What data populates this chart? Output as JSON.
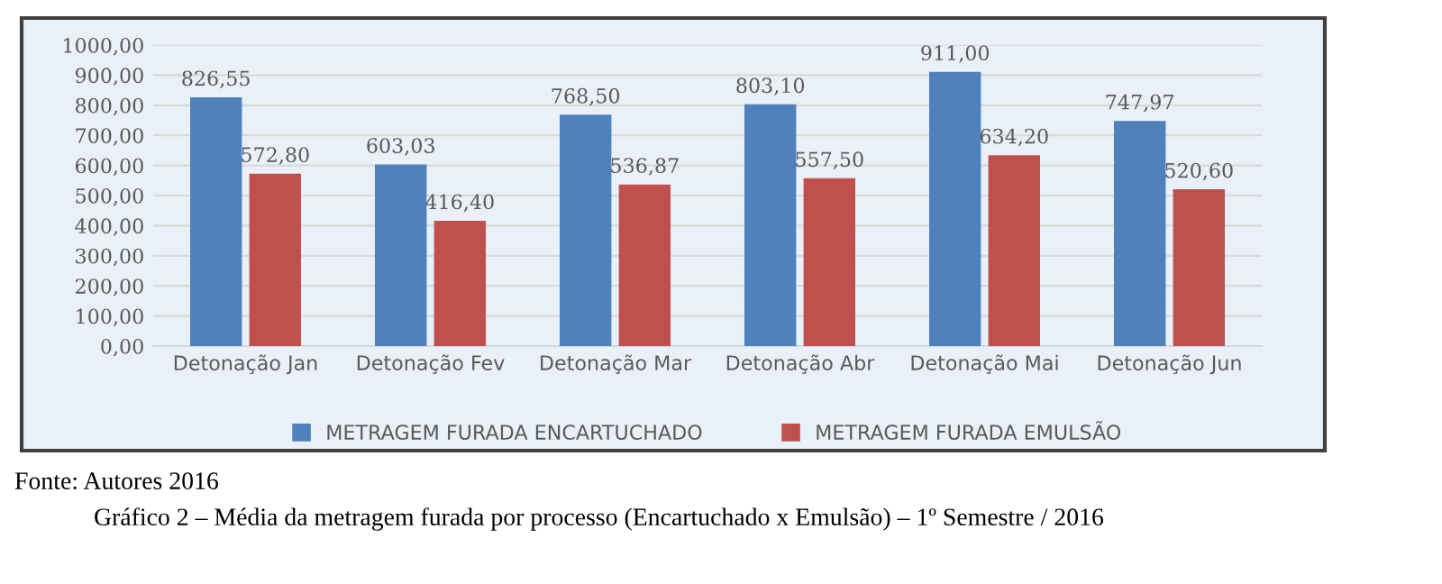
{
  "chart_data": {
    "type": "bar",
    "categories": [
      "Detonação Jan",
      "Detonação Fev",
      "Detonação Mar",
      "Detonação Abr",
      "Detonação Mai",
      "Detonação Jun"
    ],
    "series": [
      {
        "name": "METRAGEM FURADA ENCARTUCHADO",
        "color": "#4f81bd",
        "values": [
          826.55,
          603.03,
          768.5,
          803.1,
          911.0,
          747.97
        ],
        "value_labels": [
          "826,55",
          "603,03",
          "768,50",
          "803,10",
          "911,00",
          "747,97"
        ]
      },
      {
        "name": "METRAGEM FURADA EMULSÃO",
        "color": "#c0504d",
        "values": [
          572.8,
          416.4,
          536.87,
          557.5,
          634.2,
          520.6
        ],
        "value_labels": [
          "572,80",
          "416,40",
          "536,87",
          "557,50",
          "634,20",
          "520,60"
        ]
      }
    ],
    "ylim": [
      0,
      1000
    ],
    "yticks": [
      {
        "value": 0,
        "label": "0,00"
      },
      {
        "value": 100,
        "label": "100,00"
      },
      {
        "value": 200,
        "label": "200,00"
      },
      {
        "value": 300,
        "label": "300,00"
      },
      {
        "value": 400,
        "label": "400,00"
      },
      {
        "value": 500,
        "label": "500,00"
      },
      {
        "value": 600,
        "label": "600,00"
      },
      {
        "value": 700,
        "label": "700,00"
      },
      {
        "value": 800,
        "label": "800,00"
      },
      {
        "value": 900,
        "label": "900,00"
      },
      {
        "value": 1000,
        "label": "1000,00"
      }
    ],
    "grid": "y",
    "legend": "bottom",
    "annotations": [
      "Fonte: Autores 2016",
      "Gráfico 2 – Média da metragem furada por processo (Encartuchado x Emulsão) – 1º Semestre / 2016"
    ]
  }
}
